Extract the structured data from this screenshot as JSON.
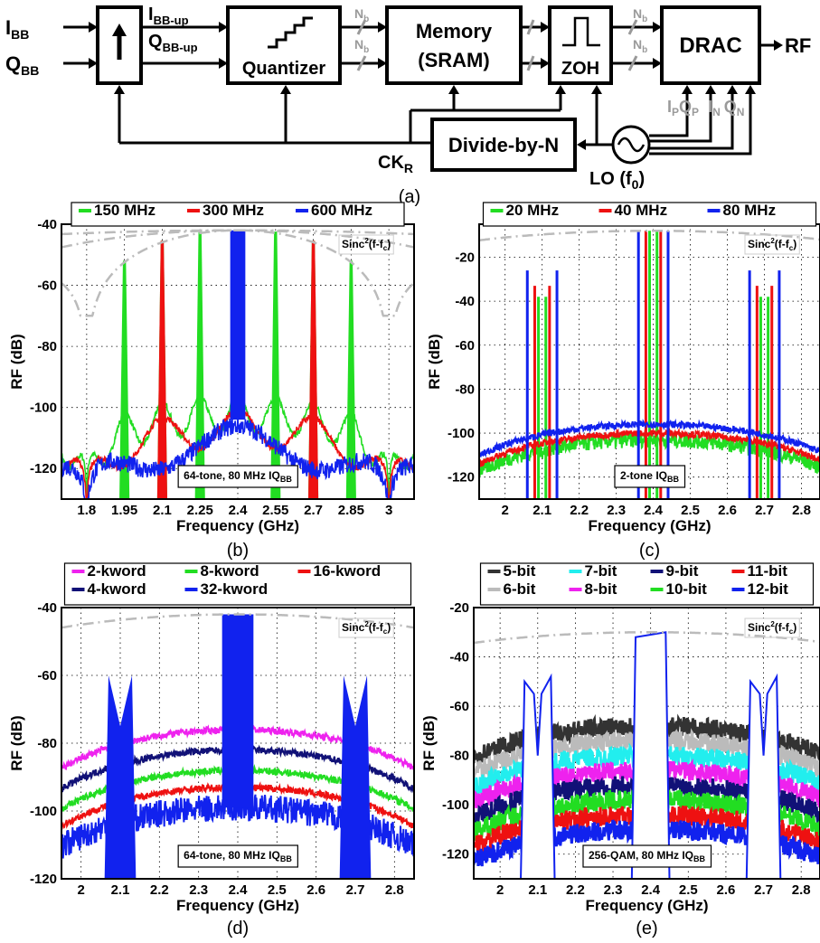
{
  "block_diagram": {
    "inputs": [
      "I",
      "Q"
    ],
    "input_subscript": "BB",
    "upsampled_signals": [
      "I",
      "Q"
    ],
    "upsampled_subscript": "BB-up",
    "quantizer_label": "Quantizer",
    "memory_label": "Memory",
    "memory_sub_label": "(SRAM)",
    "zoh_label": "ZOH",
    "drac_label": "DRAC",
    "rf_label": "RF",
    "bus_label": "N",
    "bus_subscript": "b",
    "divider_label": "Divide-by-N",
    "clock_label": "CK",
    "clock_subscript": "R",
    "lo_label": "LO (f",
    "lo_subscript": "0",
    "lo_suffix": ")",
    "lo_outputs": [
      "I",
      "Q",
      "I",
      "Q"
    ],
    "lo_output_subscripts": [
      "P",
      "P",
      "N",
      "N"
    ],
    "caption": "(a)"
  },
  "chart_data": [
    {
      "type": "line",
      "caption": "(b)",
      "xlabel": "Frequency (GHz)",
      "ylabel": "RF (dB)",
      "xlim": [
        1.7,
        3.1
      ],
      "ylim": [
        -130,
        -40
      ],
      "xticks": [
        1.8,
        1.95,
        2.1,
        2.25,
        2.4,
        2.55,
        2.7,
        2.85,
        3
      ],
      "xtick_labels": [
        "1.8",
        "1.95",
        "2.1",
        "2.25",
        "2.4",
        "2.55",
        "2.7",
        "2.85",
        "3"
      ],
      "yticks": [
        -120,
        -100,
        -80,
        -60,
        -40
      ],
      "legend_position": "top",
      "annotation": "64-tone, 80 MHz IQ",
      "annotation_subscript": "BB",
      "sinc_label": "Sinc",
      "sinc_label_rest": "(f-f",
      "sinc_label_end": ")",
      "center": 2.4,
      "series": [
        {
          "name": "150 MHz",
          "color": "#22dd22",
          "spacing": 0.15,
          "floor": -102
        },
        {
          "name": "300 MHz",
          "color": "#ee1111",
          "spacing": 0.3,
          "floor": -107
        },
        {
          "name": "600 MHz",
          "color": "#1122ee",
          "spacing": 0.6,
          "floor": -112
        }
      ]
    },
    {
      "type": "line",
      "caption": "(c)",
      "xlabel": "Frequency (GHz)",
      "ylabel": "RF (dB)",
      "xlim": [
        1.93,
        2.85
      ],
      "ylim": [
        -130,
        -5
      ],
      "xticks": [
        2,
        2.1,
        2.2,
        2.3,
        2.4,
        2.5,
        2.6,
        2.7,
        2.8
      ],
      "xtick_labels": [
        "2",
        "2.1",
        "2.2",
        "2.3",
        "2.4",
        "2.5",
        "2.6",
        "2.7",
        "2.8"
      ],
      "yticks": [
        -120,
        -100,
        -80,
        -60,
        -40,
        -20
      ],
      "legend_position": "top",
      "annotation": "2-tone IQ",
      "annotation_subscript": "BB",
      "sinc_label": "Sinc",
      "sinc_label_rest": "(f-f",
      "sinc_label_end": ")",
      "center": 2.4,
      "images": [
        2.1,
        2.7
      ],
      "series": [
        {
          "name": "20 MHz",
          "color": "#22dd22",
          "tone_offset": 0.01,
          "image_level": -38,
          "peak": -103
        },
        {
          "name": "40 MHz",
          "color": "#ee1111",
          "tone_offset": 0.02,
          "image_level": -33,
          "peak": -100
        },
        {
          "name": "80 MHz",
          "color": "#1122ee",
          "tone_offset": 0.04,
          "image_level": -26,
          "peak": -96
        }
      ]
    },
    {
      "type": "line",
      "caption": "(d)",
      "xlabel": "Frequency (GHz)",
      "ylabel": "RF (dB)",
      "xlim": [
        1.95,
        2.85
      ],
      "ylim": [
        -120,
        -40
      ],
      "xticks": [
        2,
        2.1,
        2.2,
        2.3,
        2.4,
        2.5,
        2.6,
        2.7,
        2.8
      ],
      "xtick_labels": [
        "2",
        "2.1",
        "2.2",
        "2.3",
        "2.4",
        "2.5",
        "2.6",
        "2.7",
        "2.8"
      ],
      "yticks": [
        -120,
        -100,
        -80,
        -60,
        -40
      ],
      "legend_position": "top",
      "annotation": "64-tone, 80 MHz IQ",
      "annotation_subscript": "BB",
      "sinc_label": "Sinc",
      "sinc_label_rest": "(f-f",
      "sinc_label_end": ")",
      "center": 2.4,
      "series": [
        {
          "name": "2-kword",
          "color": "#ee22ee",
          "peak": -76
        },
        {
          "name": "4-kword",
          "color": "#111177",
          "peak": -82
        },
        {
          "name": "8-kword",
          "color": "#22dd22",
          "peak": -88
        },
        {
          "name": "16-kword",
          "color": "#ee1111",
          "peak": -93
        },
        {
          "name": "32-kword",
          "color": "#1122ee",
          "peak": -99
        }
      ]
    },
    {
      "type": "line",
      "caption": "(e)",
      "xlabel": "Frequency (GHz)",
      "ylabel": "RF (dB)",
      "xlim": [
        1.93,
        2.85
      ],
      "ylim": [
        -130,
        -20
      ],
      "xticks": [
        2,
        2.1,
        2.2,
        2.3,
        2.4,
        2.5,
        2.6,
        2.7,
        2.8
      ],
      "xtick_labels": [
        "2",
        "2.1",
        "2.2",
        "2.3",
        "2.4",
        "2.5",
        "2.6",
        "2.7",
        "2.8"
      ],
      "yticks": [
        -120,
        -100,
        -80,
        -60,
        -40,
        -20
      ],
      "legend_position": "top",
      "annotation": "256-QAM, 80 MHz IQ",
      "annotation_subscript": "BB",
      "sinc_label": "Sinc",
      "sinc_label_rest": "(f-f",
      "sinc_label_end": ")",
      "center": 2.4,
      "series": [
        {
          "name": "5-bit",
          "color": "#333333",
          "peak": -68
        },
        {
          "name": "6-bit",
          "color": "#bbbbbb",
          "peak": -74
        },
        {
          "name": "7-bit",
          "color": "#22eeee",
          "peak": -80
        },
        {
          "name": "8-bit",
          "color": "#ee22ee",
          "peak": -86
        },
        {
          "name": "9-bit",
          "color": "#111177",
          "peak": -92
        },
        {
          "name": "10-bit",
          "color": "#22dd22",
          "peak": -98
        },
        {
          "name": "11-bit",
          "color": "#ee1111",
          "peak": -104
        },
        {
          "name": "12-bit",
          "color": "#1122ee",
          "peak": -110
        }
      ]
    }
  ]
}
